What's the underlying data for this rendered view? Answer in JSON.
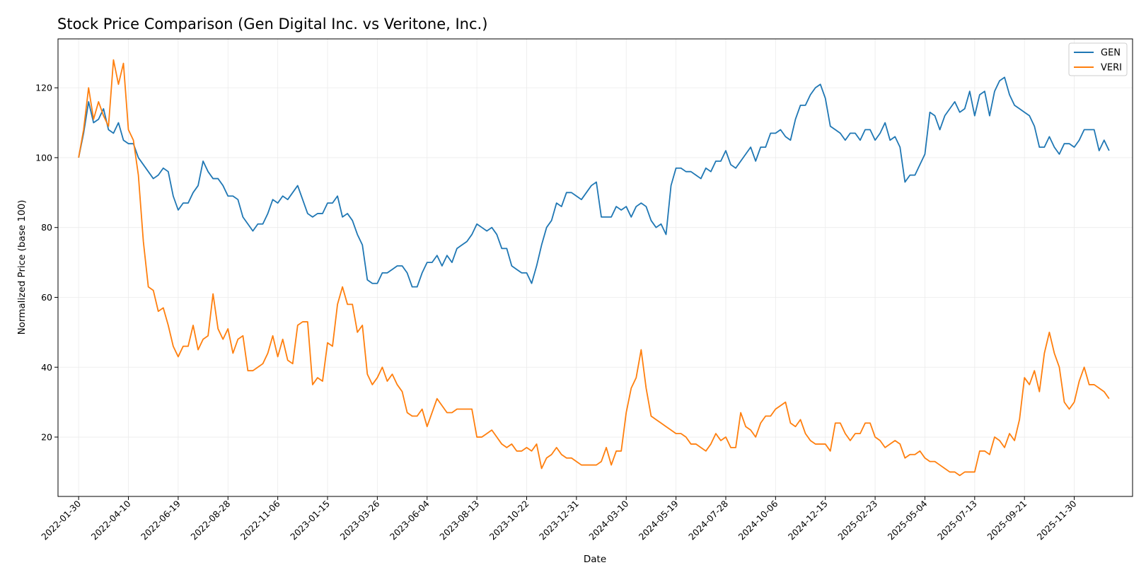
{
  "chart_data": {
    "type": "line",
    "title": "Stock Price Comparison (Gen Digital Inc. vs Veritone, Inc.)",
    "xlabel": "Date",
    "ylabel": "Normalized Price (base 100)",
    "xlim": [
      "2022-01-01",
      "2026-02-20"
    ],
    "ylim": [
      3,
      134
    ],
    "yticks": [
      20,
      40,
      60,
      80,
      100,
      120
    ],
    "xticks": [
      "2022-01-30",
      "2022-04-10",
      "2022-06-19",
      "2022-08-28",
      "2022-11-06",
      "2023-01-15",
      "2023-03-26",
      "2023-06-04",
      "2023-08-13",
      "2023-10-22",
      "2023-12-31",
      "2024-03-10",
      "2024-05-19",
      "2024-07-28",
      "2024-10-06",
      "2024-12-15",
      "2025-02-23",
      "2025-05-04",
      "2025-07-13",
      "2025-09-21",
      "2025-11-30"
    ],
    "grid": true,
    "legend": "top-right",
    "x_start": "2022-01-30",
    "x_step_days": 7,
    "series": [
      {
        "name": "GEN",
        "color": "#1f77b4",
        "values": [
          100,
          107,
          116,
          110,
          111,
          114,
          108,
          107,
          110,
          105,
          104,
          104,
          100,
          98,
          96,
          94,
          95,
          97,
          96,
          89,
          85,
          87,
          87,
          90,
          92,
          99,
          96,
          94,
          94,
          92,
          89,
          89,
          88,
          83,
          81,
          79,
          81,
          81,
          84,
          88,
          87,
          89,
          88,
          90,
          92,
          88,
          84,
          83,
          84,
          84,
          87,
          87,
          89,
          83,
          84,
          82,
          78,
          75,
          65,
          64,
          64,
          67,
          67,
          68,
          69,
          69,
          67,
          63,
          63,
          67,
          70,
          70,
          72,
          69,
          72,
          70,
          74,
          75,
          76,
          78,
          81,
          80,
          79,
          80,
          78,
          74,
          74,
          69,
          68,
          67,
          67,
          64,
          69,
          75,
          80,
          82,
          87,
          86,
          90,
          90,
          89,
          88,
          90,
          92,
          93,
          83,
          83,
          83,
          86,
          85,
          86,
          83,
          86,
          87,
          86,
          82,
          80,
          81,
          78,
          92,
          97,
          97,
          96,
          96,
          95,
          94,
          97,
          96,
          99,
          99,
          102,
          98,
          97,
          99,
          101,
          103,
          99,
          103,
          103,
          107,
          107,
          108,
          106,
          105,
          111,
          115,
          115,
          118,
          120,
          121,
          117,
          109,
          108,
          107,
          105,
          107,
          107,
          105,
          108,
          108,
          105,
          107,
          110,
          105,
          106,
          103,
          93,
          95,
          95,
          98,
          101,
          113,
          112,
          108,
          112,
          114,
          116,
          113,
          114,
          119,
          112,
          118,
          119,
          112,
          119,
          122,
          123,
          118,
          115,
          114,
          113,
          112,
          109,
          103,
          103,
          106,
          103,
          101,
          104,
          104,
          103,
          105,
          108,
          108,
          108,
          102,
          105,
          102
        ]
      },
      {
        "name": "VERI",
        "color": "#ff7f0e",
        "values": [
          100,
          108,
          120,
          111,
          116,
          112,
          109,
          128,
          121,
          127,
          108,
          105,
          95,
          76,
          63,
          62,
          56,
          57,
          52,
          46,
          43,
          46,
          46,
          52,
          45,
          48,
          49,
          61,
          51,
          48,
          51,
          44,
          48,
          49,
          39,
          39,
          40,
          41,
          44,
          49,
          43,
          48,
          42,
          41,
          52,
          53,
          53,
          35,
          37,
          36,
          47,
          46,
          58,
          63,
          58,
          58,
          50,
          52,
          38,
          35,
          37,
          40,
          36,
          38,
          35,
          33,
          27,
          26,
          26,
          28,
          23,
          27,
          31,
          29,
          27,
          27,
          28,
          28,
          28,
          28,
          20,
          20,
          21,
          22,
          20,
          18,
          17,
          18,
          16,
          16,
          17,
          16,
          18,
          11,
          14,
          15,
          17,
          15,
          14,
          14,
          13,
          12,
          12,
          12,
          12,
          13,
          17,
          12,
          16,
          16,
          27,
          34,
          37,
          45,
          34,
          26,
          25,
          24,
          23,
          22,
          21,
          21,
          20,
          18,
          18,
          17,
          16,
          18,
          21,
          19,
          20,
          17,
          17,
          27,
          23,
          22,
          20,
          24,
          26,
          26,
          28,
          29,
          30,
          24,
          23,
          25,
          21,
          19,
          18,
          18,
          18,
          16,
          24,
          24,
          21,
          19,
          21,
          21,
          24,
          24,
          20,
          19,
          17,
          18,
          19,
          18,
          14,
          15,
          15,
          16,
          14,
          13,
          13,
          12,
          11,
          10,
          10,
          9,
          10,
          10,
          10,
          16,
          16,
          15,
          20,
          19,
          17,
          21,
          19,
          25,
          37,
          35,
          39,
          33,
          44,
          50,
          44,
          40,
          30,
          28,
          30,
          36,
          40,
          35,
          35,
          34,
          33,
          31
        ]
      }
    ]
  }
}
